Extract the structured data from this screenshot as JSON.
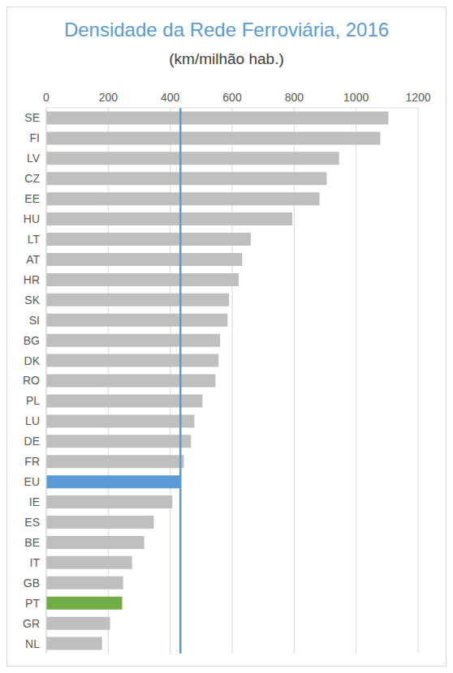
{
  "chart_data": {
    "type": "bar",
    "orientation": "horizontal",
    "title": "Densidade da Rede Ferroviária, 2016",
    "subtitle": "(km/milhão hab.)",
    "categories": [
      "SE",
      "FI",
      "LV",
      "CZ",
      "EE",
      "HU",
      "LT",
      "AT",
      "HR",
      "SK",
      "SI",
      "BG",
      "DK",
      "RO",
      "PL",
      "LU",
      "DE",
      "FR",
      "EU",
      "IE",
      "ES",
      "BE",
      "IT",
      "GB",
      "PT",
      "GR",
      "NL"
    ],
    "values": [
      1104,
      1078,
      945,
      905,
      882,
      794,
      660,
      632,
      621,
      590,
      585,
      561,
      556,
      546,
      504,
      478,
      467,
      444,
      433,
      407,
      347,
      316,
      277,
      248,
      245,
      206,
      180
    ],
    "colors": [
      "#bfbfbf",
      "#bfbfbf",
      "#bfbfbf",
      "#bfbfbf",
      "#bfbfbf",
      "#bfbfbf",
      "#bfbfbf",
      "#bfbfbf",
      "#bfbfbf",
      "#bfbfbf",
      "#bfbfbf",
      "#bfbfbf",
      "#bfbfbf",
      "#bfbfbf",
      "#bfbfbf",
      "#bfbfbf",
      "#bfbfbf",
      "#bfbfbf",
      "#5b9bd5",
      "#bfbfbf",
      "#bfbfbf",
      "#bfbfbf",
      "#bfbfbf",
      "#bfbfbf",
      "#70ad47",
      "#bfbfbf",
      "#bfbfbf"
    ],
    "reference_line": 433,
    "reference_line_color": "#5b9bd5",
    "xlim": [
      0,
      1200
    ],
    "xticks": [
      0,
      200,
      400,
      600,
      800,
      1000,
      1200
    ],
    "grid": true
  }
}
